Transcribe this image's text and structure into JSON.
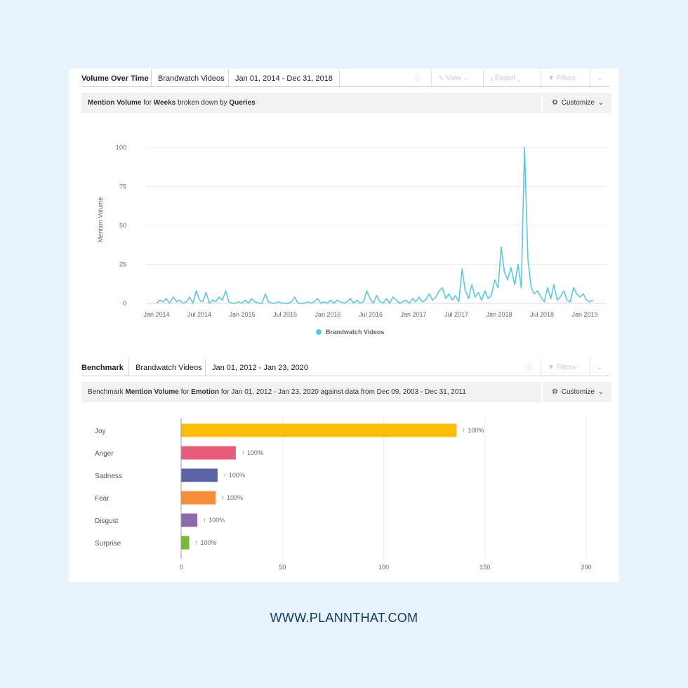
{
  "panel1": {
    "tabs": [
      "Volume Over Time",
      "Brandwatch Videos",
      "Jan 01, 2014 - Dec 31, 2018"
    ],
    "tools": {
      "info_icon": "info-icon",
      "view": "View",
      "export": "Export",
      "filters": "Filters"
    },
    "subheader": {
      "metric": "Mention Volume",
      "for_word": "for",
      "period": "Weeks",
      "broken": "broken down by",
      "dimension": "Queries"
    },
    "customize": "Customize"
  },
  "panel2": {
    "tabs": [
      "Benchmark",
      "Brandwatch Videos",
      "Jan 01, 2012 - Jan 23, 2020"
    ],
    "tools": {
      "filters": "Filters"
    },
    "subheader": {
      "prefix": "Benchmark",
      "metric": "Mention Volume",
      "for_word": "for",
      "dimension": "Emotion",
      "suffix": "for Jan 01, 2012 - Jan 23, 2020 against data from Dec 09, 2003 - Dec 31, 2011"
    },
    "customize": "Customize"
  },
  "footer": "WWW.PLANNTHAT.COM",
  "chart_data": [
    {
      "type": "line",
      "title": "",
      "ylabel": "Mention Volume",
      "xlabel": "",
      "ylim": [
        0,
        100
      ],
      "yticks": [
        0,
        25,
        50,
        75,
        100
      ],
      "xticks": [
        "Jan 2014",
        "Jul 2014",
        "Jan 2015",
        "Jul 2015",
        "Jan 2016",
        "Jul 2016",
        "Jan 2017",
        "Jul 2017",
        "Jan 2018",
        "Jul 2018",
        "Jan 2019"
      ],
      "grid": true,
      "legend_position": "bottom",
      "series": [
        {
          "name": "Brandwatch Videos",
          "color": "#5bc8e0",
          "points": [
            [
              "2014-01-01",
              0
            ],
            [
              "2014-01-15",
              2
            ],
            [
              "2014-01-29",
              1
            ],
            [
              "2014-02-12",
              3
            ],
            [
              "2014-02-26",
              0
            ],
            [
              "2014-03-12",
              4
            ],
            [
              "2014-03-26",
              1
            ],
            [
              "2014-04-09",
              2
            ],
            [
              "2014-04-23",
              0
            ],
            [
              "2014-05-07",
              1
            ],
            [
              "2014-05-21",
              4
            ],
            [
              "2014-06-04",
              0
            ],
            [
              "2014-06-18",
              8
            ],
            [
              "2014-07-02",
              2
            ],
            [
              "2014-07-16",
              1
            ],
            [
              "2014-07-30",
              7
            ],
            [
              "2014-08-13",
              0
            ],
            [
              "2014-08-27",
              2
            ],
            [
              "2014-09-10",
              1
            ],
            [
              "2014-09-24",
              4
            ],
            [
              "2014-10-08",
              2
            ],
            [
              "2014-10-22",
              8
            ],
            [
              "2014-11-05",
              1
            ],
            [
              "2014-11-19",
              0
            ],
            [
              "2014-12-03",
              0
            ],
            [
              "2014-12-17",
              1
            ],
            [
              "2014-12-31",
              0
            ],
            [
              "2015-01-14",
              2
            ],
            [
              "2015-01-28",
              0
            ],
            [
              "2015-02-11",
              3
            ],
            [
              "2015-02-25",
              1
            ],
            [
              "2015-03-11",
              0
            ],
            [
              "2015-03-25",
              0
            ],
            [
              "2015-04-08",
              6
            ],
            [
              "2015-04-22",
              1
            ],
            [
              "2015-05-06",
              0
            ],
            [
              "2015-05-20",
              0
            ],
            [
              "2015-06-03",
              1
            ],
            [
              "2015-06-17",
              0
            ],
            [
              "2015-07-01",
              0
            ],
            [
              "2015-07-15",
              0
            ],
            [
              "2015-07-29",
              1
            ],
            [
              "2015-08-12",
              4
            ],
            [
              "2015-08-26",
              0
            ],
            [
              "2015-09-09",
              0
            ],
            [
              "2015-09-23",
              0
            ],
            [
              "2015-10-07",
              1
            ],
            [
              "2015-10-21",
              0
            ],
            [
              "2015-11-04",
              1
            ],
            [
              "2015-11-18",
              3
            ],
            [
              "2015-12-02",
              0
            ],
            [
              "2015-12-16",
              1
            ],
            [
              "2015-12-30",
              0
            ],
            [
              "2016-01-13",
              2
            ],
            [
              "2016-01-27",
              0
            ],
            [
              "2016-02-10",
              2
            ],
            [
              "2016-02-24",
              1
            ],
            [
              "2016-03-09",
              0
            ],
            [
              "2016-03-23",
              1
            ],
            [
              "2016-04-06",
              3
            ],
            [
              "2016-04-20",
              0
            ],
            [
              "2016-05-04",
              2
            ],
            [
              "2016-05-18",
              0
            ],
            [
              "2016-06-01",
              1
            ],
            [
              "2016-06-15",
              8
            ],
            [
              "2016-06-29",
              3
            ],
            [
              "2016-07-13",
              0
            ],
            [
              "2016-07-27",
              5
            ],
            [
              "2016-08-10",
              1
            ],
            [
              "2016-08-24",
              0
            ],
            [
              "2016-09-07",
              3
            ],
            [
              "2016-09-21",
              0
            ],
            [
              "2016-10-05",
              4
            ],
            [
              "2016-10-19",
              2
            ],
            [
              "2016-11-02",
              0
            ],
            [
              "2016-11-16",
              1
            ],
            [
              "2016-11-30",
              2
            ],
            [
              "2016-12-14",
              0
            ],
            [
              "2016-12-28",
              3
            ],
            [
              "2017-01-11",
              1
            ],
            [
              "2017-01-25",
              4
            ],
            [
              "2017-02-08",
              1
            ],
            [
              "2017-02-22",
              2
            ],
            [
              "2017-03-08",
              6
            ],
            [
              "2017-03-22",
              2
            ],
            [
              "2017-04-05",
              4
            ],
            [
              "2017-04-19",
              8
            ],
            [
              "2017-05-03",
              10
            ],
            [
              "2017-05-17",
              3
            ],
            [
              "2017-05-31",
              6
            ],
            [
              "2017-06-14",
              2
            ],
            [
              "2017-06-28",
              5
            ],
            [
              "2017-07-12",
              1
            ],
            [
              "2017-07-26",
              22
            ],
            [
              "2017-08-09",
              8
            ],
            [
              "2017-08-23",
              3
            ],
            [
              "2017-09-06",
              12
            ],
            [
              "2017-09-20",
              4
            ],
            [
              "2017-10-04",
              7
            ],
            [
              "2017-10-18",
              2
            ],
            [
              "2017-11-01",
              8
            ],
            [
              "2017-11-15",
              3
            ],
            [
              "2017-11-29",
              5
            ],
            [
              "2017-12-13",
              15
            ],
            [
              "2017-12-27",
              10
            ],
            [
              "2018-01-10",
              36
            ],
            [
              "2018-01-24",
              20
            ],
            [
              "2018-02-07",
              15
            ],
            [
              "2018-02-21",
              23
            ],
            [
              "2018-03-07",
              12
            ],
            [
              "2018-03-21",
              25
            ],
            [
              "2018-04-04",
              10
            ],
            [
              "2018-04-18",
              100
            ],
            [
              "2018-05-02",
              28
            ],
            [
              "2018-05-16",
              10
            ],
            [
              "2018-05-30",
              6
            ],
            [
              "2018-06-13",
              8
            ],
            [
              "2018-06-27",
              4
            ],
            [
              "2018-07-11",
              1
            ],
            [
              "2018-07-25",
              10
            ],
            [
              "2018-08-08",
              3
            ],
            [
              "2018-08-22",
              12
            ],
            [
              "2018-09-05",
              2
            ],
            [
              "2018-09-19",
              4
            ],
            [
              "2018-10-03",
              8
            ],
            [
              "2018-10-17",
              2
            ],
            [
              "2018-10-31",
              1
            ],
            [
              "2018-11-14",
              10
            ],
            [
              "2018-11-28",
              6
            ],
            [
              "2018-12-12",
              4
            ],
            [
              "2018-12-26",
              6
            ],
            [
              "2019-01-09",
              2
            ],
            [
              "2019-01-23",
              1
            ],
            [
              "2019-02-06",
              2
            ]
          ]
        }
      ]
    },
    {
      "type": "bar",
      "orientation": "horizontal",
      "title": "",
      "xlabel": "",
      "ylabel": "",
      "xlim": [
        0,
        200
      ],
      "xticks": [
        0,
        50,
        100,
        150,
        200
      ],
      "grid": true,
      "categories": [
        "Joy",
        "Anger",
        "Sadness",
        "Fear",
        "Disgust",
        "Surprise"
      ],
      "values": [
        136,
        27,
        18,
        17,
        8,
        4
      ],
      "colors": [
        "#fcbc0a",
        "#e75b7b",
        "#5b63a4",
        "#f78e3a",
        "#8d6aab",
        "#7ab839"
      ],
      "changes": [
        "100%",
        "100%",
        "100%",
        "100%",
        "100%",
        "100%"
      ]
    }
  ]
}
